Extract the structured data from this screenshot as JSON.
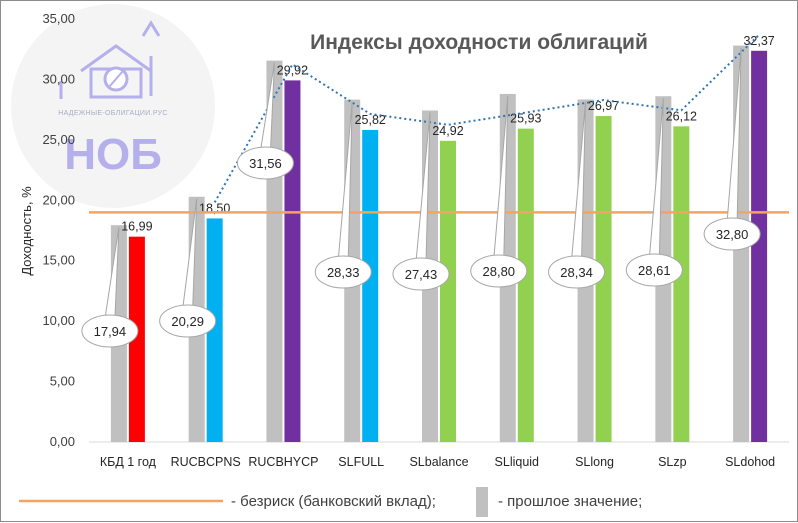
{
  "watermark": {
    "caption": "НАДЕЖНЫЕ-ОБЛИГАЦИИ.РУС",
    "abbr": "НОБ"
  },
  "chart_data": {
    "type": "bar",
    "title": "Индексы доходности облигаций",
    "xlabel": "",
    "ylabel": "Доходность, %",
    "ylim": [
      0,
      35
    ],
    "yticks": [
      "0,00",
      "5,00",
      "10,00",
      "15,00",
      "20,00",
      "25,00",
      "30,00",
      "35,00"
    ],
    "grid": false,
    "legend_position": "bottom",
    "categories": [
      "КБД 1 год",
      "RUCBCPNS",
      "RUCBHYCP",
      "SLFULL",
      "SLbalance",
      "SLliquid",
      "SLlong",
      "SLzp",
      "SLdohod"
    ],
    "series": [
      {
        "name": "прошлое значение",
        "values": [
          17.94,
          20.29,
          31.56,
          28.33,
          27.43,
          28.8,
          28.34,
          28.61,
          32.8
        ],
        "labels": [
          "17,94",
          "20,29",
          "31,56",
          "28,33",
          "27,43",
          "28,80",
          "28,34",
          "28,61",
          "32,80"
        ]
      },
      {
        "values": [
          16.99,
          18.5,
          29.92,
          25.82,
          24.92,
          25.93,
          26.97,
          26.12,
          32.37
        ],
        "labels": [
          "16,99",
          "18,50",
          "29,92",
          "25,82",
          "24,92",
          "25,93",
          "26,97",
          "26,12",
          "32,37"
        ]
      }
    ],
    "risk_free": {
      "name": "безриск (банковский вклад)",
      "value": 19
    },
    "legend": {
      "risk_free_text": "- безриск (банковский вклад);",
      "previous_text": "- прошлое значение;"
    },
    "colors": {
      "previous": "#c0c0c0",
      "bars": [
        "#ff0000",
        "#00b0f0",
        "#7030a0",
        "#00b0f0",
        "#92d050",
        "#92d050",
        "#92d050",
        "#92d050",
        "#7030a0"
      ],
      "risk_free": "#f4a460",
      "trend": "#2e75b6"
    }
  }
}
